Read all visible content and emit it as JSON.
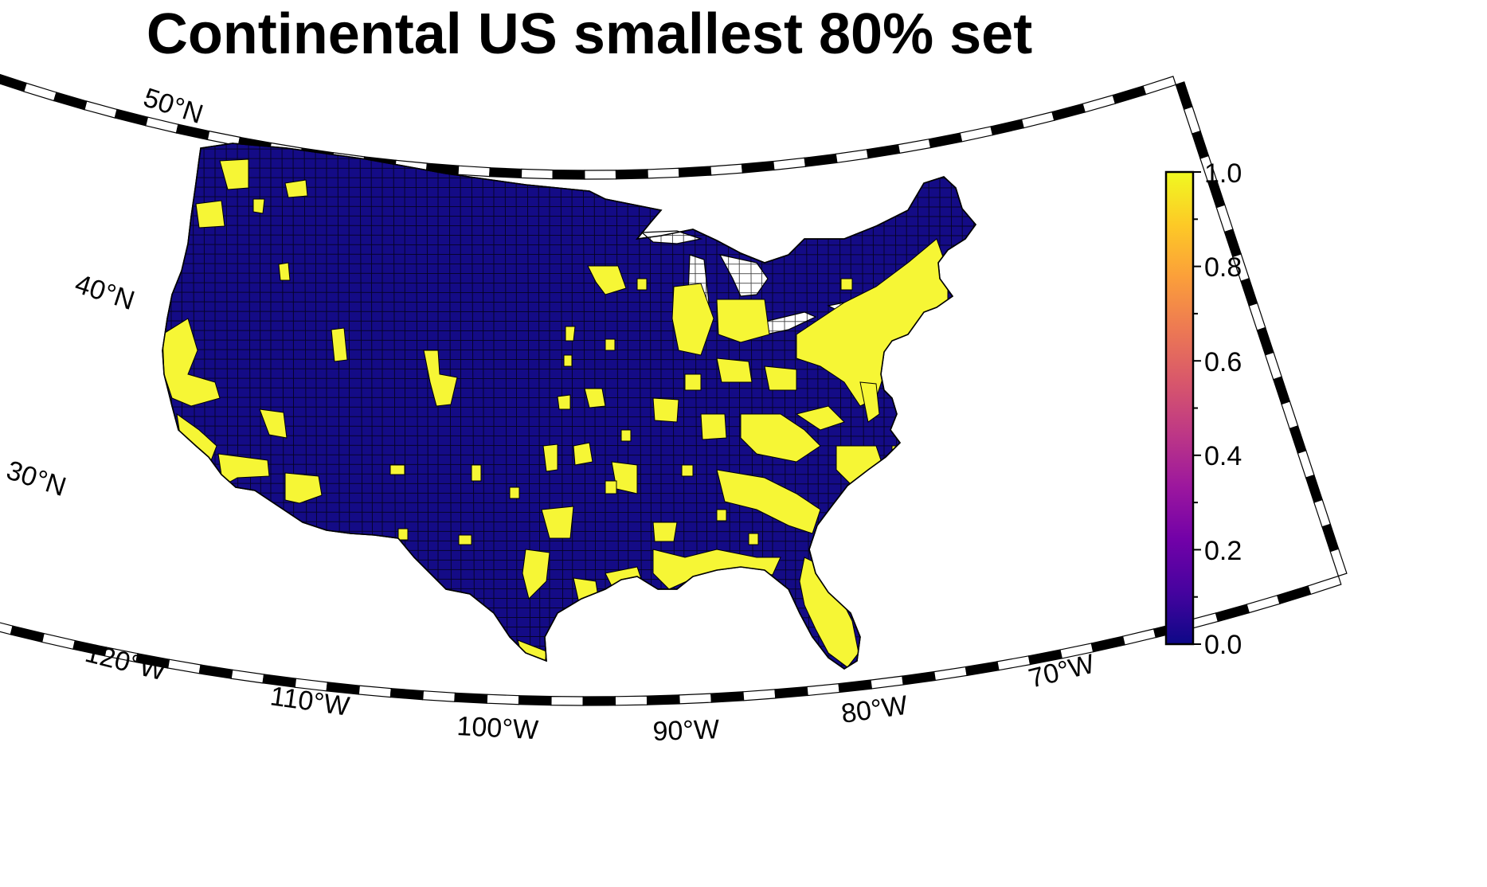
{
  "title": "Continental US smallest 80% set",
  "colors": {
    "background": "#ffffff",
    "land_out_of_set": "#140b86",
    "land_in_set": "#f6f635",
    "county_border": "#000000",
    "frame": "#000000"
  },
  "graticule": {
    "lat_labels": [
      "50°N",
      "40°N",
      "30°N"
    ],
    "lon_labels": [
      "120°W",
      "110°W",
      "100°W",
      "90°W",
      "80°W",
      "70°W"
    ]
  },
  "colorbar": {
    "colormap": "plasma",
    "ticks": [
      "0.0",
      "0.2",
      "0.4",
      "0.6",
      "0.8",
      "1.0"
    ],
    "range": [
      0,
      1
    ],
    "stops": [
      "#0d0887",
      "#46039f",
      "#7201a8",
      "#9c179e",
      "#bd3786",
      "#d8576b",
      "#ed7953",
      "#fb9f3a",
      "#fdca26",
      "#f0f921"
    ]
  },
  "map": {
    "projection": "conic",
    "region": "Continental US counties",
    "value_meaning": "1 = county in smallest 80% set, 0 = not in set"
  }
}
